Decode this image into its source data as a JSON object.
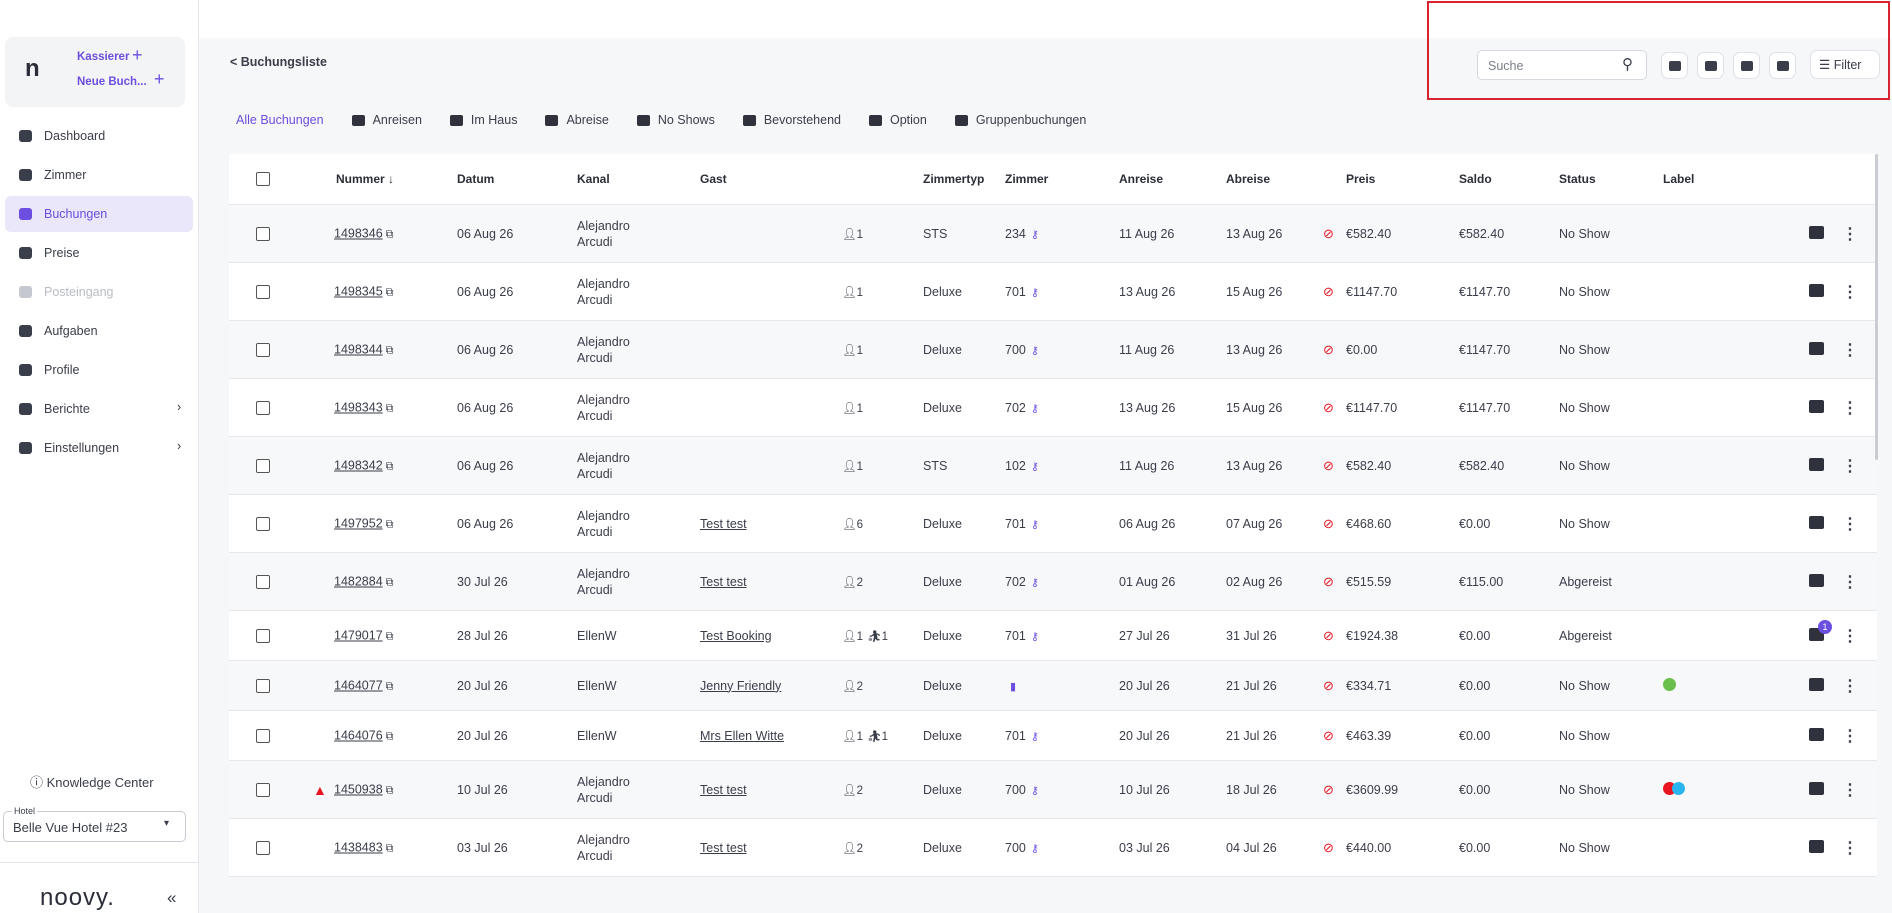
{
  "sidebar": {
    "quick_actions": [
      "Kassierer",
      "Neue Buch..."
    ],
    "nav": [
      "Dashboard",
      "Zimmer",
      "Buchungen",
      "Preise",
      "Posteingang",
      "Aufgaben",
      "Profile",
      "Berichte",
      "Einstellungen"
    ],
    "knowledge_center": "Knowledge Center",
    "hotel_label": "Hotel",
    "hotel": "Belle Vue Hotel #23",
    "logo": "noovy."
  },
  "header": {
    "back": "< Buchungsliste",
    "search_placeholder": "Suche",
    "filter": "Filter"
  },
  "tabs": [
    "Alle Buchungen",
    "Anreisen",
    "Im Haus",
    "Abreise",
    "No Shows",
    "Bevorstehend",
    "Option",
    "Gruppenbuchungen"
  ],
  "table": {
    "columns": [
      "Nummer",
      "Datum",
      "Kanal",
      "Gast",
      "Zimmertyp",
      "Zimmer",
      "Anreise",
      "Abreise",
      "Preis",
      "Saldo",
      "Status",
      "Label"
    ],
    "rows": [
      {
        "number": "1498346",
        "date": "06 Aug 26",
        "channel": "Alejandro Arcudi",
        "guest": null,
        "adults": "1",
        "children": null,
        "room_type": "STS",
        "room": "234",
        "arrival": "11 Aug 26",
        "departure": "13 Aug 26",
        "price": "€582.40",
        "balance": "€582.40",
        "status": "No Show"
      },
      {
        "number": "1498345",
        "date": "06 Aug 26",
        "channel": "Alejandro Arcudi",
        "guest": null,
        "adults": "1",
        "children": null,
        "room_type": "Deluxe",
        "room": "701",
        "arrival": "13 Aug 26",
        "departure": "15 Aug 26",
        "price": "€1147.70",
        "balance": "€1147.70",
        "status": "No Show"
      },
      {
        "number": "1498344",
        "date": "06 Aug 26",
        "channel": "Alejandro Arcudi",
        "guest": null,
        "adults": "1",
        "children": null,
        "room_type": "Deluxe",
        "room": "700",
        "arrival": "11 Aug 26",
        "departure": "13 Aug 26",
        "price": "€0.00",
        "balance": "€1147.70",
        "status": "No Show"
      },
      {
        "number": "1498343",
        "date": "06 Aug 26",
        "channel": "Alejandro Arcudi",
        "guest": null,
        "adults": "1",
        "children": null,
        "room_type": "Deluxe",
        "room": "702",
        "arrival": "13 Aug 26",
        "departure": "15 Aug 26",
        "price": "€1147.70",
        "balance": "€1147.70",
        "status": "No Show"
      },
      {
        "number": "1498342",
        "date": "06 Aug 26",
        "channel": "Alejandro Arcudi",
        "guest": null,
        "adults": "1",
        "children": null,
        "room_type": "STS",
        "room": "102",
        "arrival": "11 Aug 26",
        "departure": "13 Aug 26",
        "price": "€582.40",
        "balance": "€582.40",
        "status": "No Show"
      },
      {
        "number": "1497952",
        "date": "06 Aug 26",
        "channel": "Alejandro Arcudi",
        "guest": "Test test",
        "adults": "6",
        "children": null,
        "room_type": "Deluxe",
        "room": "701",
        "arrival": "06 Aug 26",
        "departure": "07 Aug 26",
        "price": "€468.60",
        "balance": "€0.00",
        "status": "No Show"
      },
      {
        "number": "1482884",
        "date": "30 Jul 26",
        "channel": "Alejandro Arcudi",
        "guest": "Test test",
        "adults": "2",
        "children": null,
        "room_type": "Deluxe",
        "room": "702",
        "arrival": "01 Aug 26",
        "departure": "02 Aug 26",
        "price": "€515.59",
        "balance": "€115.00",
        "status": "Abgereist"
      },
      {
        "number": "1479017",
        "date": "28 Jul 26",
        "channel": "EllenW",
        "guest": "Test Booking",
        "adults": "1",
        "children": "1",
        "room_type": "Deluxe",
        "room": "701",
        "arrival": "27 Jul 26",
        "departure": "31 Jul 26",
        "price": "€1924.38",
        "balance": "€0.00",
        "status": "Abgereist",
        "messages": "1"
      },
      {
        "number": "1464077",
        "date": "20 Jul 26",
        "channel": "EllenW",
        "guest": "Jenny Friendly",
        "adults": "2",
        "children": null,
        "room_type": "Deluxe",
        "room": null,
        "arrival": "20 Jul 26",
        "departure": "21 Jul 26",
        "price": "€334.71",
        "balance": "€0.00",
        "status": "No Show",
        "labels": [
          "#6abf4b"
        ]
      },
      {
        "number": "1464076",
        "date": "20 Jul 26",
        "channel": "EllenW",
        "guest": "Mrs Ellen Witte",
        "adults": "1",
        "children": "1",
        "room_type": "Deluxe",
        "room": "701",
        "arrival": "20 Jul 26",
        "departure": "21 Jul 26",
        "price": "€463.39",
        "balance": "€0.00",
        "status": "No Show"
      },
      {
        "number": "1450938",
        "date": "10 Jul 26",
        "channel": "Alejandro Arcudi",
        "guest": "Test test",
        "adults": "2",
        "children": null,
        "room_type": "Deluxe",
        "room": "700",
        "arrival": "10 Jul 26",
        "departure": "18 Jul 26",
        "price": "€3609.99",
        "balance": "€0.00",
        "status": "No Show",
        "warning": true,
        "labels": [
          "#e8141f",
          "#29b6f0"
        ]
      },
      {
        "number": "1438483",
        "date": "03 Jul 26",
        "channel": "Alejandro Arcudi",
        "guest": "Test test",
        "adults": "2",
        "children": null,
        "room_type": "Deluxe",
        "room": "700",
        "arrival": "03 Jul 26",
        "departure": "04 Jul 26",
        "price": "€440.00",
        "balance": "€0.00",
        "status": "No Show"
      }
    ]
  }
}
